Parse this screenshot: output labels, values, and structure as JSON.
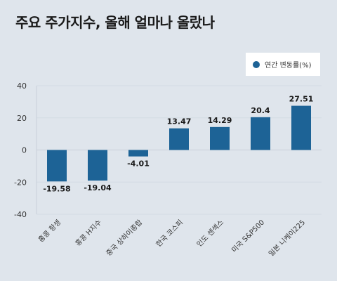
{
  "title": "주요 주가지수, 올해 얼마나 올랐나",
  "legend": {
    "label": "연간 변동률(%)"
  },
  "colors": {
    "bar": "#1d6396",
    "axis": "#c8d0da",
    "grid": "#d3dbe4"
  },
  "chart_data": {
    "type": "bar",
    "categories": [
      "홍콩 항셍",
      "홍콩 H지수",
      "중국 상하이종합",
      "한국 코스피",
      "인도 센섹스",
      "미국 S&P500",
      "일본 니케이225"
    ],
    "series": [
      {
        "name": "연간 변동률(%)",
        "values": [
          -19.58,
          -19.04,
          -4.01,
          13.47,
          14.29,
          20.4,
          27.51
        ]
      }
    ],
    "value_labels": [
      "-19.58",
      "-19.04",
      "-4.01",
      "13.47",
      "14.29",
      "20.4",
      "27.51"
    ],
    "yticks": [
      "40",
      "20",
      "0",
      "-20",
      "-40"
    ],
    "ylim": [
      -40,
      40
    ],
    "grid": true,
    "legend_position": "top-right"
  }
}
